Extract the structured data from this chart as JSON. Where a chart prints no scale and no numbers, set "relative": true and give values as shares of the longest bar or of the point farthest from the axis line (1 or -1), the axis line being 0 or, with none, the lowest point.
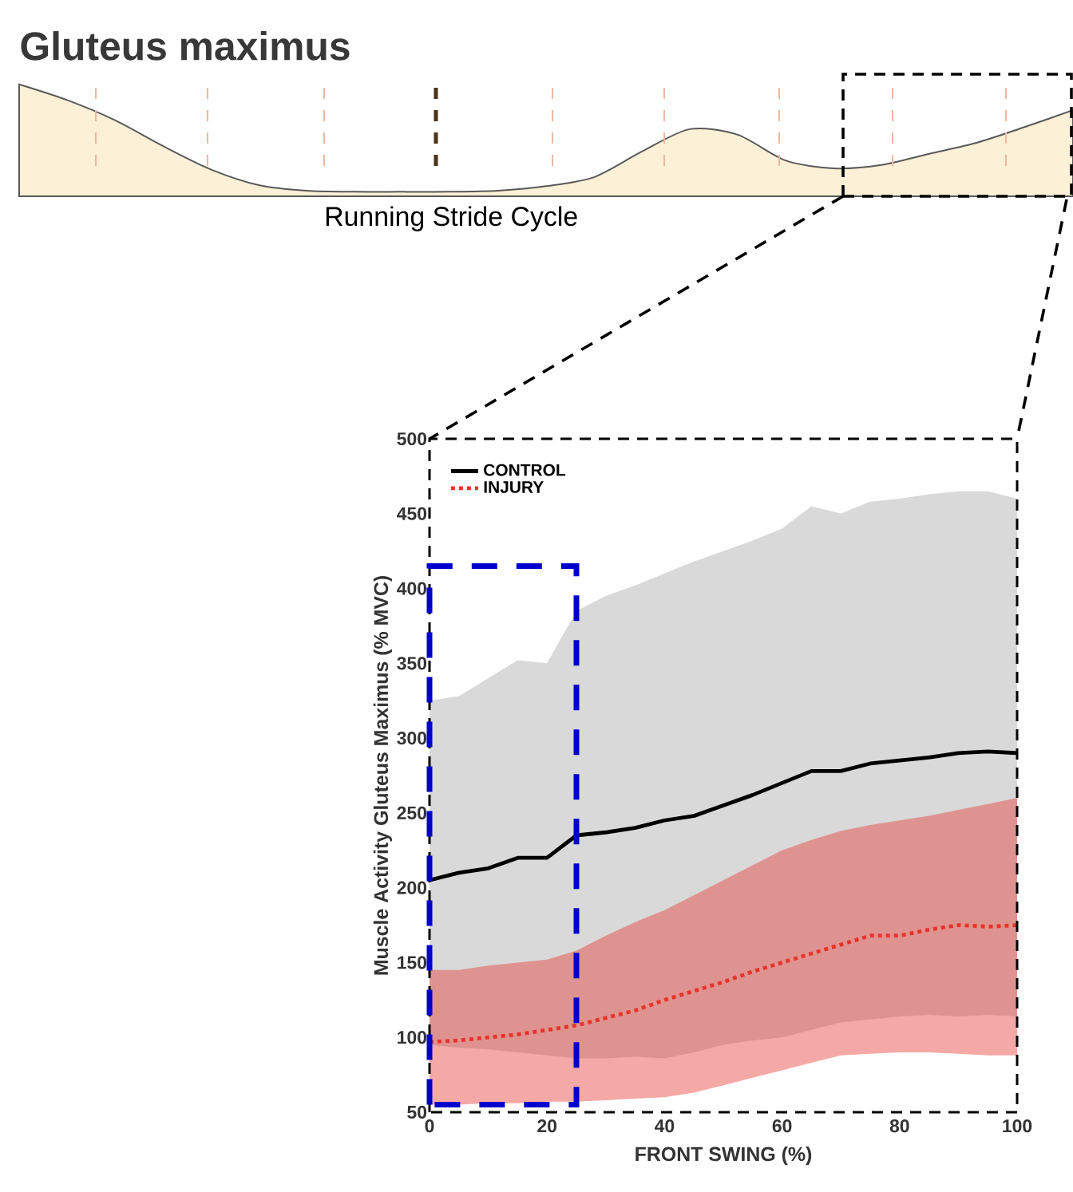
{
  "chart_data": [
    {
      "type": "area",
      "title": "Gluteus maximus",
      "xlabel": "Running Stride Cycle",
      "relative": true,
      "color": "#fcf0d6",
      "categories": [
        null,
        null,
        null,
        null,
        null,
        null,
        null,
        null,
        null,
        null,
        null,
        null,
        null,
        null,
        null,
        null,
        null,
        null,
        null,
        null,
        null,
        null,
        null
      ],
      "values": [
        1.0,
        0.86,
        0.68,
        0.45,
        0.24,
        0.1,
        0.05,
        0.04,
        0.04,
        0.04,
        0.05,
        0.09,
        0.17,
        0.4,
        0.6,
        0.55,
        0.32,
        0.25,
        0.28,
        0.38,
        0.48,
        0.62,
        0.77
      ]
    },
    {
      "type": "line",
      "ylabel": "Muscle Activity Gluteus Maximus (% MVC)",
      "xlabel": "FRONT SWING (%)",
      "xlim": [
        0,
        100
      ],
      "ylim": [
        50,
        500
      ],
      "xticks": [
        0,
        20,
        40,
        60,
        80,
        100
      ],
      "yticks": [
        50,
        100,
        150,
        200,
        250,
        300,
        350,
        400,
        450,
        500
      ],
      "legend": "top left",
      "grid": false,
      "x": [
        0,
        5,
        10,
        15,
        20,
        25,
        30,
        35,
        40,
        45,
        50,
        55,
        60,
        65,
        70,
        75,
        80,
        85,
        90,
        95,
        100
      ],
      "series": [
        {
          "name": "CONTROL",
          "color": "#000000",
          "line_style": "solid",
          "values": [
            205,
            210,
            213,
            220,
            220,
            235,
            237,
            240,
            245,
            248,
            255,
            262,
            270,
            278,
            278,
            283,
            285,
            287,
            290,
            291,
            290
          ],
          "upper": [
            325,
            328,
            340,
            352,
            350,
            385,
            395,
            402,
            410,
            418,
            425,
            432,
            440,
            455,
            450,
            458,
            460,
            463,
            465,
            465,
            460
          ],
          "lower": [
            95,
            93,
            92,
            90,
            88,
            86,
            86,
            87,
            86,
            90,
            95,
            98,
            100,
            105,
            110,
            112,
            114,
            115,
            114,
            115,
            114
          ]
        },
        {
          "name": "INJURY",
          "color": "#e8332a",
          "line_style": "dotted",
          "values": [
            97,
            98,
            100,
            102,
            105,
            108,
            113,
            118,
            125,
            131,
            137,
            144,
            150,
            156,
            162,
            168,
            168,
            172,
            175,
            174,
            175
          ],
          "upper": [
            145,
            145,
            148,
            150,
            152,
            158,
            168,
            177,
            185,
            195,
            205,
            215,
            225,
            232,
            238,
            242,
            245,
            248,
            252,
            256,
            260
          ],
          "lower": [
            55,
            55,
            56,
            56,
            57,
            57,
            58,
            59,
            60,
            63,
            68,
            73,
            78,
            83,
            88,
            89,
            90,
            90,
            89,
            88,
            88
          ]
        }
      ]
    }
  ]
}
